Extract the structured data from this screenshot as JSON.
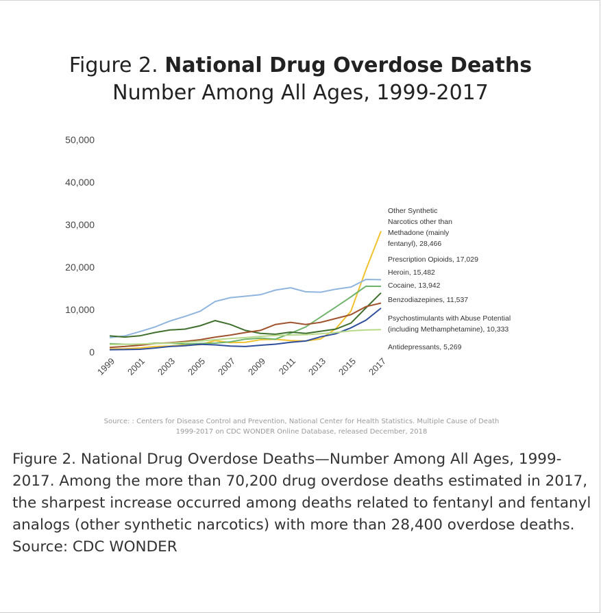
{
  "figure": {
    "title_prefix": "Figure 2.",
    "title_bold": "National Drug Overdose Deaths",
    "subtitle": "Number Among All Ages, 1999-2017",
    "source_line1": "Source: : Centers for Disease Control and Prevention, National Center for Health Statistics. Multiple Cause of Death",
    "source_line2": "1999-2017 on CDC WONDER Online Database, released December, 2018"
  },
  "caption": "Figure 2. National Drug Overdose Deaths—Number Among All Ages, 1999-2017. Among the more than 70,200 drug overdose deaths estimated in 2017, the sharpest increase occurred among deaths related to fentanyl and fentanyl analogs (other synthetic narcotics) with more than 28,400 overdose deaths. Source: CDC WONDER",
  "chart_data": {
    "type": "line",
    "title": "Figure 2. National Drug Overdose Deaths",
    "subtitle": "Number Among All Ages, 1999-2017",
    "xlabel": "",
    "ylabel": "",
    "ylim": [
      0,
      50000
    ],
    "yticks": [
      "0",
      "10,000",
      "20,000",
      "30,000",
      "40,000",
      "50,000"
    ],
    "ytick_values": [
      0,
      10000,
      20000,
      30000,
      40000,
      50000
    ],
    "x": [
      1999,
      2000,
      2001,
      2002,
      2003,
      2004,
      2005,
      2006,
      2007,
      2008,
      2009,
      2010,
      2011,
      2012,
      2013,
      2014,
      2015,
      2016,
      2017
    ],
    "xtick_labels": [
      "1999",
      "2001",
      "2003",
      "2005",
      "2007",
      "2009",
      "2011",
      "2013",
      "2015",
      "2017"
    ],
    "grid": false,
    "series": [
      {
        "name": "Other Synthetic Narcotics other than Methadone (mainly fentanyl), 28,466",
        "color": "#f2c12e",
        "values": [
          730,
          780,
          960,
          1300,
          1400,
          1660,
          1740,
          2700,
          2210,
          2300,
          2900,
          3000,
          2700,
          2600,
          3100,
          5500,
          9600,
          19400,
          28466
        ],
        "label_lines": [
          "Other Synthetic",
          "Narcotics other than",
          "Methadone (mainly",
          "fentanyl), 28,466"
        ]
      },
      {
        "name": "Prescription Opioids, 17,029",
        "color": "#8fb4de",
        "values": [
          3400,
          3800,
          4800,
          5900,
          7300,
          8400,
          9600,
          11900,
          12800,
          13150,
          13500,
          14600,
          15150,
          14200,
          14100,
          14800,
          15300,
          17100,
          17029
        ],
        "label_lines": [
          "Prescription Opioids, 17,029"
        ]
      },
      {
        "name": "Heroin, 15,482",
        "color": "#70b36b",
        "values": [
          1960,
          1840,
          1780,
          2090,
          2080,
          1880,
          2010,
          2090,
          2400,
          3040,
          3280,
          3040,
          4400,
          5900,
          8260,
          10600,
          12990,
          15500,
          15482
        ],
        "label_lines": [
          "Heroin, 15,482"
        ]
      },
      {
        "name": "Cocaine, 13,942",
        "color": "#3f6f2c",
        "values": [
          3800,
          3540,
          3830,
          4600,
          5200,
          5400,
          6200,
          7400,
          6500,
          5100,
          4400,
          4200,
          4700,
          4400,
          4900,
          5400,
          6800,
          10400,
          13942
        ],
        "label_lines": [
          "Cocaine, 13,942"
        ]
      },
      {
        "name": "Benzodiazepines, 11,537",
        "color": "#a0522d",
        "values": [
          1100,
          1300,
          1600,
          2000,
          2200,
          2500,
          2900,
          3500,
          4000,
          4600,
          5100,
          6500,
          7000,
          6500,
          7000,
          7900,
          8800,
          10700,
          11537
        ],
        "label_lines": [
          "Benzodiazepines, 11,537"
        ]
      },
      {
        "name": "Psychostimulants with Abuse Potential (including Methamphetamine), 10,333",
        "color": "#2f4e9c",
        "values": [
          550,
          580,
          650,
          950,
          1300,
          1500,
          1800,
          1700,
          1400,
          1300,
          1600,
          1850,
          2300,
          2600,
          3600,
          4300,
          5700,
          7500,
          10333
        ],
        "label_lines": [
          "Psychostimulants with Abuse Potential",
          "(including Methamphetamine), 10,333"
        ]
      },
      {
        "name": "Antidepressants, 5,269",
        "color": "#b8d98a",
        "values": [
          1750,
          1800,
          1900,
          2000,
          2100,
          2300,
          2600,
          2900,
          3200,
          3400,
          3700,
          3900,
          4000,
          4100,
          4300,
          4600,
          5000,
          5200,
          5269
        ],
        "label_lines": [
          "Antidepressants, 5,269"
        ]
      }
    ]
  }
}
